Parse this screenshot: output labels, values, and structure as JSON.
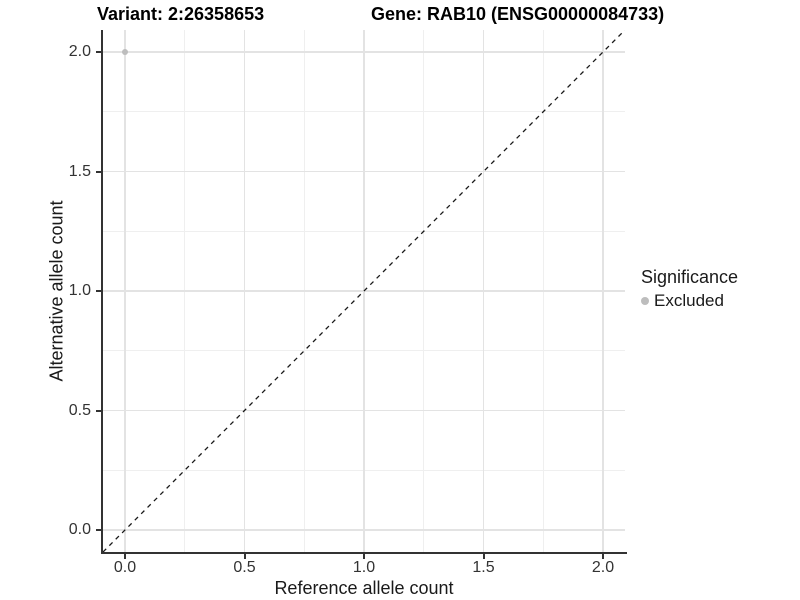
{
  "chart_data": {
    "type": "scatter",
    "title_left": "Variant: 2:26358653",
    "title_right": "Gene: RAB10 (ENSG00000084733)",
    "xlabel": "Reference allele count",
    "ylabel": "Alternative allele count",
    "xlim": [
      -0.1,
      2.1
    ],
    "ylim": [
      -0.1,
      2.1
    ],
    "x_ticks": [
      0.0,
      0.5,
      1.0,
      1.5,
      2.0
    ],
    "x_tick_labels": [
      "0.0",
      "0.5",
      "1.0",
      "1.5",
      "2.0"
    ],
    "y_ticks": [
      0.0,
      0.5,
      1.0,
      1.5,
      2.0
    ],
    "y_tick_labels": [
      "0.0",
      "0.5",
      "1.0",
      "1.5",
      "2.0"
    ],
    "minor_ticks": [
      0.25,
      0.75,
      1.25,
      1.75
    ],
    "grid": true,
    "series": [
      {
        "name": "Excluded",
        "color": "#bdbdbd",
        "points": [
          [
            0,
            2
          ]
        ]
      }
    ],
    "reference_line": {
      "kind": "identity y = x",
      "style": "dashed",
      "color": "#1a1a1a"
    },
    "legend": {
      "title": "Significance",
      "position": "right"
    }
  }
}
